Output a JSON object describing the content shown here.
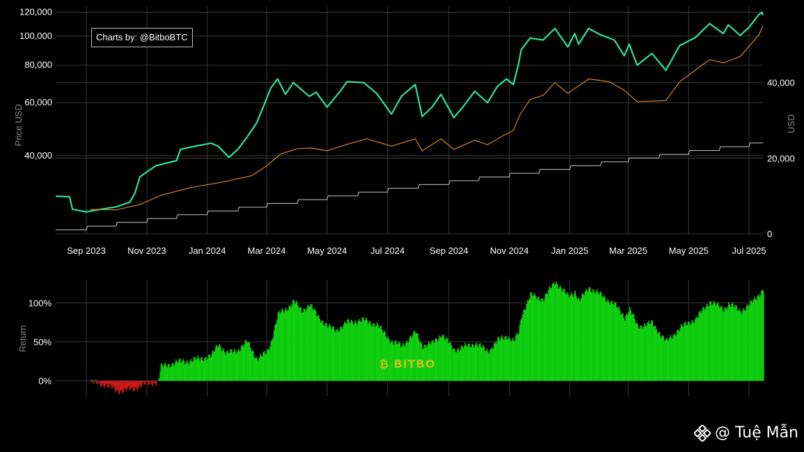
{
  "credit": "Charts by: @BitboBTC",
  "bitbo_label": "BITBO",
  "watermark_label": "@ Tuệ Mẫn",
  "colors": {
    "price": "#2ee59d",
    "avg_cost": "#d08a26",
    "invested": "#c8c8c8",
    "positive": "#10d010",
    "negative": "#cc1a1a",
    "background": "#000000"
  },
  "chart_data": [
    {
      "type": "line",
      "panel": "price",
      "scale": "log",
      "xlabels": [
        "Sep 2023",
        "Nov 2023",
        "Jan 2024",
        "Mar 2024",
        "May 2024",
        "Jul 2024",
        "Sep 2024",
        "Nov 2024",
        "Jan 2025",
        "Mar 2025",
        "May 2025",
        "Jul 2025"
      ],
      "x_range": [
        "2023-08-01",
        "2025-07-15"
      ],
      "ylabel": "Price USD",
      "y_ticks": [
        "40,000",
        "60,000",
        "80,000",
        "100,000",
        "120,000"
      ],
      "y_tick_values": [
        40000,
        60000,
        80000,
        100000,
        120000
      ],
      "ylim": [
        22000,
        125000
      ],
      "y2label": "USD",
      "y2_ticks": [
        "0",
        "20,000",
        "40,000"
      ],
      "y2_tick_values": [
        0,
        20000,
        40000
      ],
      "y2lim": [
        0,
        60000
      ],
      "series": [
        {
          "axis": "left",
          "points": [
            [
              "2023-08-01",
              29300
            ],
            [
              "2023-08-15",
              29200
            ],
            [
              "2023-08-18",
              26500
            ],
            [
              "2023-09-01",
              26000
            ],
            [
              "2023-09-15",
              26500
            ],
            [
              "2023-10-01",
              27000
            ],
            [
              "2023-10-15",
              28000
            ],
            [
              "2023-10-20",
              30000
            ],
            [
              "2023-10-25",
              34000
            ],
            [
              "2023-11-10",
              37000
            ],
            [
              "2023-12-01",
              38500
            ],
            [
              "2023-12-05",
              42000
            ],
            [
              "2023-12-20",
              43000
            ],
            [
              "2024-01-05",
              44000
            ],
            [
              "2024-01-12",
              43000
            ],
            [
              "2024-01-23",
              39500
            ],
            [
              "2024-02-01",
              42000
            ],
            [
              "2024-02-10",
              46000
            ],
            [
              "2024-02-20",
              51500
            ],
            [
              "2024-03-01",
              62000
            ],
            [
              "2024-03-05",
              67000
            ],
            [
              "2024-03-12",
              72000
            ],
            [
              "2024-03-20",
              64000
            ],
            [
              "2024-03-28",
              70000
            ],
            [
              "2024-04-13",
              63000
            ],
            [
              "2024-04-20",
              65000
            ],
            [
              "2024-05-01",
              58000
            ],
            [
              "2024-05-15",
              66000
            ],
            [
              "2024-05-21",
              70500
            ],
            [
              "2024-06-07",
              70000
            ],
            [
              "2024-06-20",
              64500
            ],
            [
              "2024-07-05",
              55000
            ],
            [
              "2024-07-15",
              63000
            ],
            [
              "2024-07-29",
              69000
            ],
            [
              "2024-08-05",
              54000
            ],
            [
              "2024-08-15",
              58000
            ],
            [
              "2024-08-24",
              64000
            ],
            [
              "2024-09-06",
              53500
            ],
            [
              "2024-09-15",
              58000
            ],
            [
              "2024-09-27",
              65500
            ],
            [
              "2024-10-10",
              60000
            ],
            [
              "2024-10-20",
              68000
            ],
            [
              "2024-10-29",
              72000
            ],
            [
              "2024-11-05",
              69000
            ],
            [
              "2024-11-10",
              80000
            ],
            [
              "2024-11-13",
              90000
            ],
            [
              "2024-11-22",
              98500
            ],
            [
              "2024-12-05",
              97000
            ],
            [
              "2024-12-17",
              106000
            ],
            [
              "2024-12-30",
              92000
            ],
            [
              "2025-01-06",
              102000
            ],
            [
              "2025-01-10",
              94000
            ],
            [
              "2025-01-20",
              106000
            ],
            [
              "2025-02-01",
              101000
            ],
            [
              "2025-02-15",
              97000
            ],
            [
              "2025-02-25",
              86000
            ],
            [
              "2025-03-02",
              94000
            ],
            [
              "2025-03-10",
              80000
            ],
            [
              "2025-03-25",
              87500
            ],
            [
              "2025-04-08",
              77000
            ],
            [
              "2025-04-22",
              93000
            ],
            [
              "2025-05-08",
              99000
            ],
            [
              "2025-05-22",
              110000
            ],
            [
              "2025-06-05",
              102000
            ],
            [
              "2025-06-10",
              109000
            ],
            [
              "2025-06-22",
              100500
            ],
            [
              "2025-07-01",
              107000
            ],
            [
              "2025-07-11",
              118000
            ],
            [
              "2025-07-14",
              120000
            ],
            [
              "2025-07-15",
              117500
            ]
          ]
        },
        {
          "axis": "left",
          "points": [
            [
              "2023-09-05",
              26500
            ],
            [
              "2023-10-01",
              26400
            ],
            [
              "2023-10-25",
              27500
            ],
            [
              "2023-11-15",
              29500
            ],
            [
              "2023-12-15",
              31300
            ],
            [
              "2024-01-15",
              32600
            ],
            [
              "2024-02-15",
              34300
            ],
            [
              "2024-03-01",
              37000
            ],
            [
              "2024-03-15",
              40500
            ],
            [
              "2024-04-01",
              42200
            ],
            [
              "2024-04-15",
              42400
            ],
            [
              "2024-05-01",
              41500
            ],
            [
              "2024-05-20",
              43500
            ],
            [
              "2024-06-10",
              45500
            ],
            [
              "2024-07-05",
              43000
            ],
            [
              "2024-07-29",
              45500
            ],
            [
              "2024-08-05",
              41500
            ],
            [
              "2024-08-24",
              45500
            ],
            [
              "2024-09-06",
              42000
            ],
            [
              "2024-09-27",
              45000
            ],
            [
              "2024-10-10",
              43500
            ],
            [
              "2024-10-25",
              46500
            ],
            [
              "2024-11-05",
              48500
            ],
            [
              "2024-11-12",
              55000
            ],
            [
              "2024-11-22",
              61500
            ],
            [
              "2024-12-05",
              63500
            ],
            [
              "2024-12-17",
              70000
            ],
            [
              "2024-12-30",
              64500
            ],
            [
              "2025-01-20",
              72000
            ],
            [
              "2025-02-10",
              70500
            ],
            [
              "2025-02-25",
              66000
            ],
            [
              "2025-03-10",
              60500
            ],
            [
              "2025-04-08",
              61000
            ],
            [
              "2025-04-22",
              70500
            ],
            [
              "2025-05-22",
              83500
            ],
            [
              "2025-06-05",
              81500
            ],
            [
              "2025-06-22",
              85500
            ],
            [
              "2025-07-11",
              101000
            ],
            [
              "2025-07-15",
              108000
            ]
          ]
        },
        {
          "axis": "right",
          "points": [
            [
              "2023-08-01",
              1000
            ],
            [
              "2023-09-01",
              1000
            ],
            [
              "2023-09-02",
              2000
            ],
            [
              "2023-10-01",
              2000
            ],
            [
              "2023-10-02",
              3000
            ],
            [
              "2023-11-01",
              3000
            ],
            [
              "2023-11-02",
              4000
            ],
            [
              "2023-12-01",
              4000
            ],
            [
              "2023-12-02",
              5000
            ],
            [
              "2024-01-01",
              5000
            ],
            [
              "2024-01-02",
              6000
            ],
            [
              "2024-02-01",
              6000
            ],
            [
              "2024-02-02",
              7000
            ],
            [
              "2024-03-01",
              7000
            ],
            [
              "2024-03-02",
              8000
            ],
            [
              "2024-04-01",
              8000
            ],
            [
              "2024-04-02",
              9000
            ],
            [
              "2024-05-01",
              9000
            ],
            [
              "2024-05-02",
              10000
            ],
            [
              "2024-06-01",
              10000
            ],
            [
              "2024-06-02",
              11000
            ],
            [
              "2024-07-01",
              11000
            ],
            [
              "2024-07-02",
              12000
            ],
            [
              "2024-08-01",
              12000
            ],
            [
              "2024-08-02",
              13000
            ],
            [
              "2024-09-01",
              13000
            ],
            [
              "2024-09-02",
              14000
            ],
            [
              "2024-10-01",
              14000
            ],
            [
              "2024-10-02",
              15000
            ],
            [
              "2024-11-01",
              15000
            ],
            [
              "2024-11-02",
              16000
            ],
            [
              "2024-12-01",
              16000
            ],
            [
              "2024-12-02",
              17000
            ],
            [
              "2025-01-01",
              17000
            ],
            [
              "2025-01-02",
              18000
            ],
            [
              "2025-02-01",
              18000
            ],
            [
              "2025-02-02",
              19000
            ],
            [
              "2025-03-01",
              19000
            ],
            [
              "2025-03-02",
              20000
            ],
            [
              "2025-04-01",
              20000
            ],
            [
              "2025-04-02",
              21000
            ],
            [
              "2025-05-01",
              21000
            ],
            [
              "2025-05-02",
              22000
            ],
            [
              "2025-06-01",
              22000
            ],
            [
              "2025-06-02",
              23000
            ],
            [
              "2025-07-01",
              23000
            ],
            [
              "2025-07-02",
              24000
            ],
            [
              "2025-07-15",
              24000
            ]
          ]
        }
      ]
    },
    {
      "type": "bar",
      "panel": "return",
      "ylabel": "Return",
      "y_ticks": [
        "0%",
        "50%",
        "100%"
      ],
      "y_tick_values": [
        0,
        50,
        100
      ],
      "ylim": [
        -20,
        130
      ],
      "series": [
        {
          "points": [
            [
              "2023-09-05",
              -2
            ],
            [
              "2023-09-20",
              -5
            ],
            [
              "2023-10-01",
              -13
            ],
            [
              "2023-10-10",
              -12
            ],
            [
              "2023-10-18",
              -11
            ],
            [
              "2023-10-25",
              -6
            ],
            [
              "2023-11-05",
              -3
            ],
            [
              "2023-11-12",
              -1
            ],
            [
              "2023-11-15",
              18
            ],
            [
              "2023-12-01",
              24
            ],
            [
              "2023-12-15",
              26
            ],
            [
              "2024-01-05",
              32
            ],
            [
              "2024-01-12",
              48
            ],
            [
              "2024-01-20",
              35
            ],
            [
              "2024-02-01",
              40
            ],
            [
              "2024-02-10",
              50
            ],
            [
              "2024-02-20",
              28
            ],
            [
              "2024-03-01",
              37
            ],
            [
              "2024-03-05",
              50
            ],
            [
              "2024-03-12",
              85
            ],
            [
              "2024-03-20",
              92
            ],
            [
              "2024-03-28",
              102
            ],
            [
              "2024-04-05",
              90
            ],
            [
              "2024-04-13",
              98
            ],
            [
              "2024-04-20",
              85
            ],
            [
              "2024-05-01",
              70
            ],
            [
              "2024-05-10",
              65
            ],
            [
              "2024-05-21",
              75
            ],
            [
              "2024-06-07",
              78
            ],
            [
              "2024-06-20",
              72
            ],
            [
              "2024-07-05",
              50
            ],
            [
              "2024-07-15",
              45
            ],
            [
              "2024-07-29",
              62
            ],
            [
              "2024-08-05",
              45
            ],
            [
              "2024-08-15",
              48
            ],
            [
              "2024-08-24",
              60
            ],
            [
              "2024-09-06",
              40
            ],
            [
              "2024-09-15",
              43
            ],
            [
              "2024-09-27",
              48
            ],
            [
              "2024-10-10",
              38
            ],
            [
              "2024-10-20",
              52
            ],
            [
              "2024-10-29",
              58
            ],
            [
              "2024-11-05",
              50
            ],
            [
              "2024-11-10",
              62
            ],
            [
              "2024-11-13",
              85
            ],
            [
              "2024-11-22",
              110
            ],
            [
              "2024-12-05",
              105
            ],
            [
              "2024-12-17",
              128
            ],
            [
              "2024-12-30",
              108
            ],
            [
              "2025-01-06",
              115
            ],
            [
              "2025-01-10",
              102
            ],
            [
              "2025-01-20",
              120
            ],
            [
              "2025-02-01",
              110
            ],
            [
              "2025-02-15",
              98
            ],
            [
              "2025-02-25",
              82
            ],
            [
              "2025-03-02",
              92
            ],
            [
              "2025-03-10",
              70
            ],
            [
              "2025-03-25",
              74
            ],
            [
              "2025-04-08",
              50
            ],
            [
              "2025-04-22",
              68
            ],
            [
              "2025-05-08",
              80
            ],
            [
              "2025-05-22",
              102
            ],
            [
              "2025-06-05",
              92
            ],
            [
              "2025-06-10",
              99
            ],
            [
              "2025-06-22",
              90
            ],
            [
              "2025-07-01",
              97
            ],
            [
              "2025-07-11",
              112
            ],
            [
              "2025-07-15",
              118
            ]
          ]
        }
      ]
    }
  ]
}
